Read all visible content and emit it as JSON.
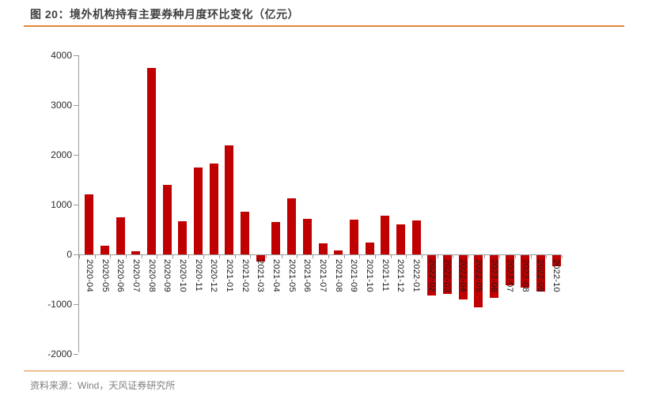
{
  "page": {
    "title": "图 20：境外机构持有主要券种月度环比变化（亿元）",
    "source_label": "资料来源：Wind，天风证券研究所"
  },
  "colors": {
    "bar": "#c00000",
    "accent_line": "#e2883a",
    "axis": "#9a9a9a",
    "title_text": "#3f3f3f",
    "source_text": "#7f7f7f"
  },
  "chart_data": {
    "type": "bar",
    "title": "境外机构持有主要券种月度环比变化（亿元）",
    "xlabel": "",
    "ylabel": "",
    "ylim": [
      -2000,
      4000
    ],
    "yticks": [
      4000,
      3000,
      2000,
      1000,
      0,
      -1000,
      -2000
    ],
    "grid": false,
    "legend": "none",
    "bar_color": "#c00000",
    "categories": [
      "2020-04",
      "2020-05",
      "2020-06",
      "2020-07",
      "2020-08",
      "2020-09",
      "2020-10",
      "2020-11",
      "2020-12",
      "2021-01",
      "2021-02",
      "2021-03",
      "2021-04",
      "2021-05",
      "2021-06",
      "2021-07",
      "2021-08",
      "2021-09",
      "2021-10",
      "2021-11",
      "2021-12",
      "2022-01",
      "2022-02",
      "2022-03",
      "2022-04",
      "2022-05",
      "2022-06",
      "2022-07",
      "2022-08",
      "2022-09",
      "2022-10"
    ],
    "values": [
      1200,
      180,
      750,
      60,
      3750,
      1390,
      670,
      1750,
      1830,
      2190,
      860,
      -120,
      650,
      1130,
      720,
      230,
      85,
      700,
      240,
      780,
      610,
      680,
      -810,
      -780,
      -890,
      -1050,
      -850,
      -600,
      -650,
      -730,
      -230
    ]
  }
}
